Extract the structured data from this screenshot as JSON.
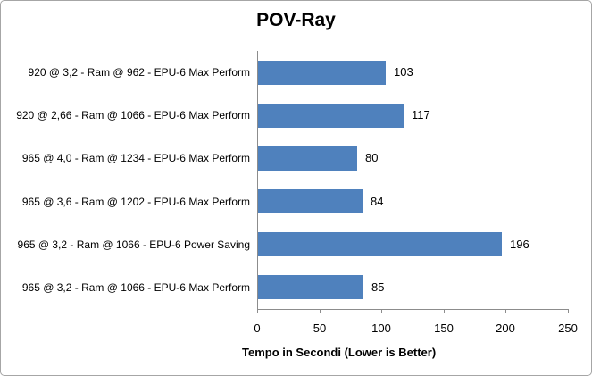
{
  "chart_data": {
    "type": "bar",
    "orientation": "horizontal",
    "title": "POV-Ray",
    "categories": [
      "920 @ 3,2 - Ram @ 962 - EPU-6 Max Perform",
      "920 @ 2,66 - Ram @ 1066 - EPU-6 Max Perform",
      "965 @ 4,0 - Ram @ 1234 - EPU-6 Max Perform",
      "965 @ 3,6 - Ram @ 1202 - EPU-6 Max Perform",
      "965 @ 3,2 - Ram @ 1066 - EPU-6 Power Saving",
      "965 @ 3,2 - Ram @ 1066 - EPU-6 Max Perform"
    ],
    "values": [
      103,
      117,
      80,
      84,
      196,
      85
    ],
    "xlabel": "Tempo in Secondi (Lower is Better)",
    "ylabel": "",
    "xlim": [
      0,
      250
    ],
    "xticks": [
      0,
      50,
      100,
      150,
      200,
      250
    ],
    "grid": false,
    "legend": "none",
    "data_labels": true
  },
  "colors": {
    "bar_fill": "#4F81BD",
    "axis_line": "#8C8C8C",
    "chart_border": "#A6A6A6",
    "text": "#000000",
    "background": "#FFFFFF"
  }
}
